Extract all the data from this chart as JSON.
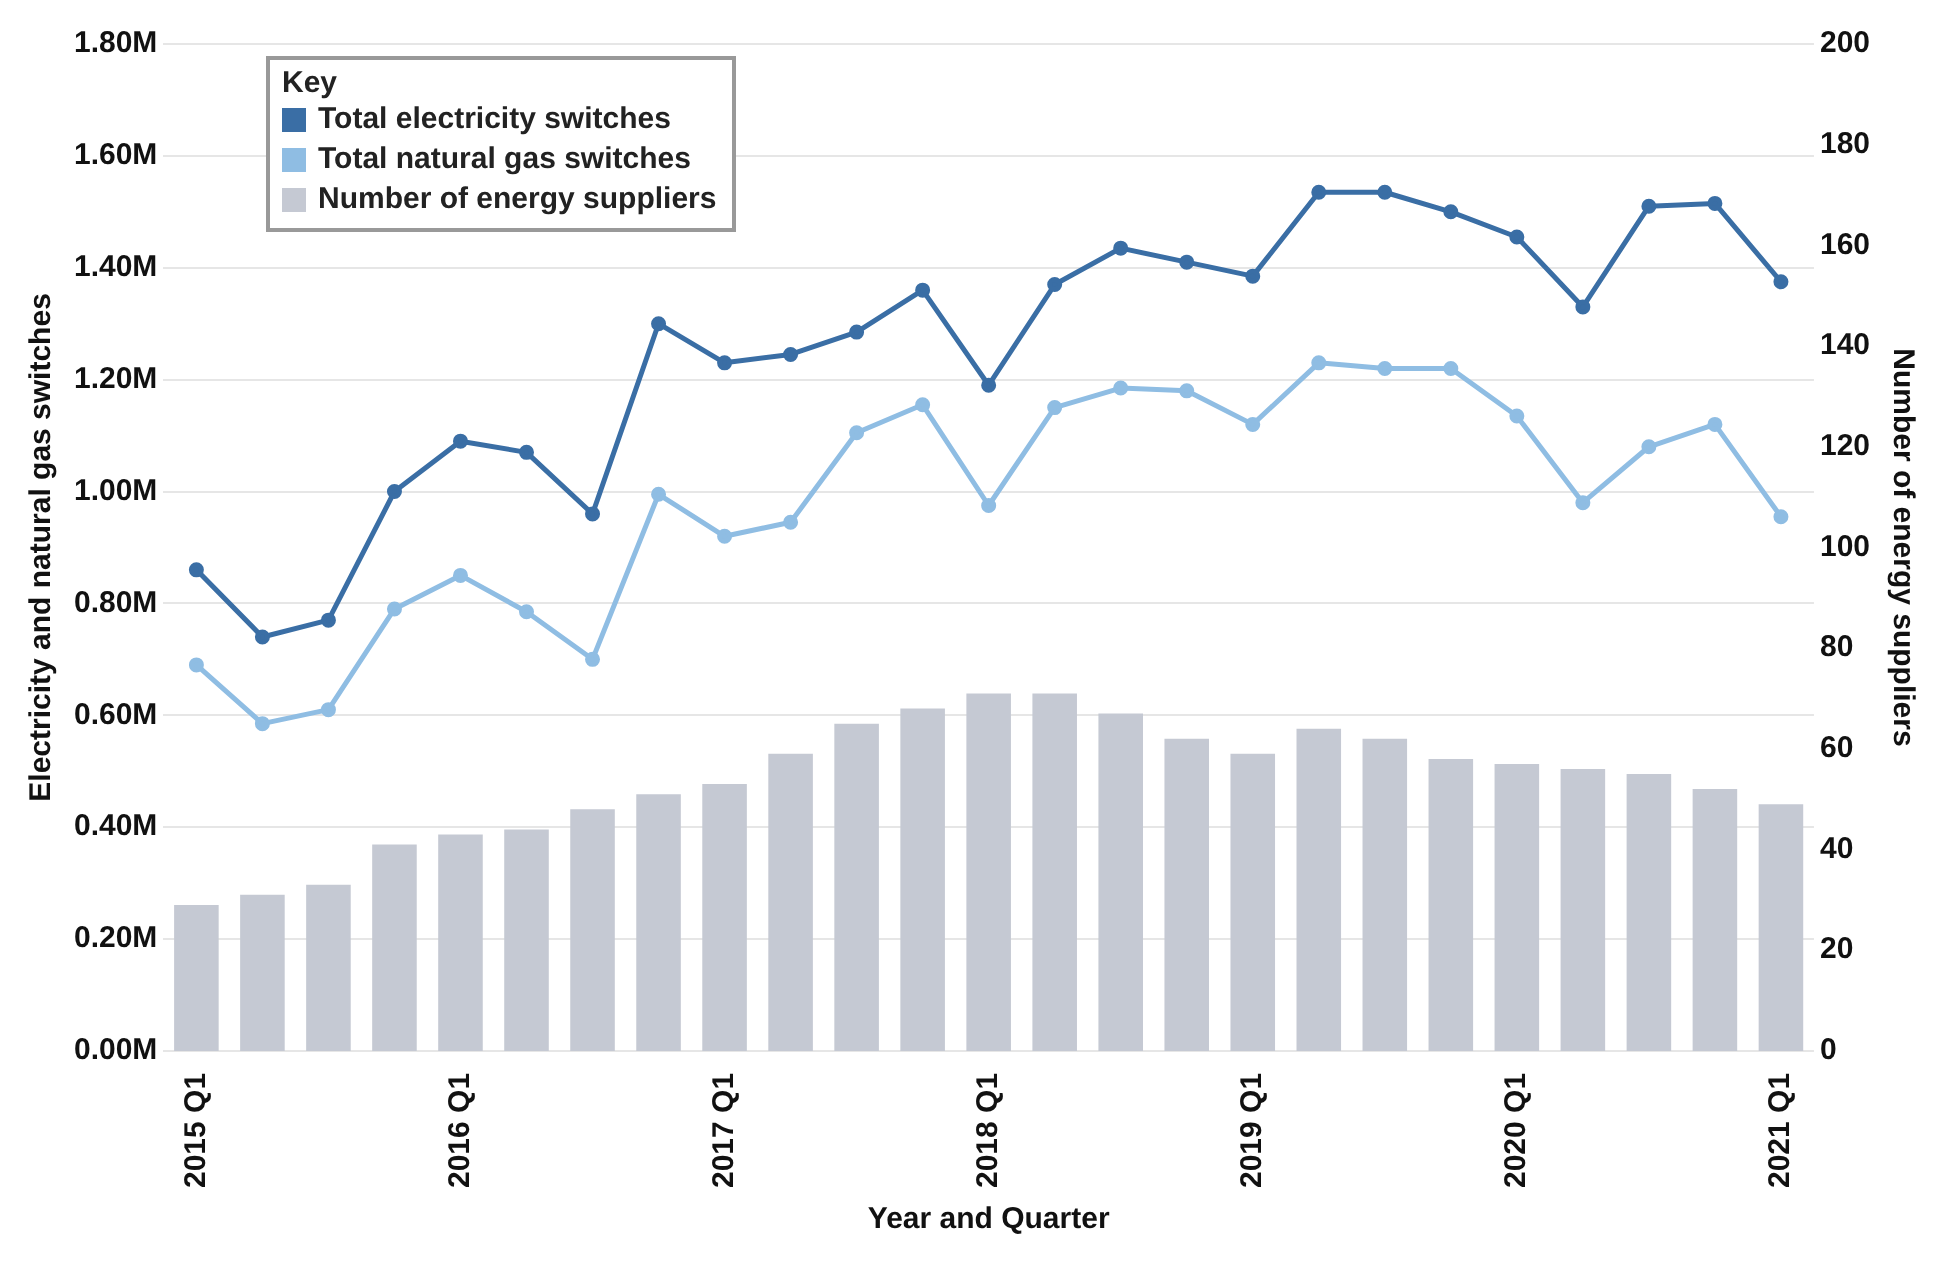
{
  "chart_data": {
    "type": "line",
    "xlabel": "Year and Quarter",
    "ylabel": "Electricity and natural gas switches",
    "y2label": "Number of energy suppliers",
    "legend_title": "Key",
    "categories": [
      "2015 Q1",
      null,
      null,
      null,
      "2016 Q1",
      null,
      null,
      null,
      "2017 Q1",
      null,
      null,
      null,
      "2018 Q1",
      null,
      null,
      null,
      "2019 Q1",
      null,
      null,
      null,
      "2020 Q1",
      null,
      null,
      null,
      "2021 Q1"
    ],
    "series": [
      {
        "name": "Total electricity switches",
        "color": "#3a6ea5",
        "values": [
          0.86,
          0.74,
          0.77,
          1.0,
          1.09,
          1.07,
          0.96,
          1.3,
          1.23,
          1.245,
          1.285,
          1.36,
          1.19,
          1.37,
          1.435,
          1.41,
          1.385,
          1.535,
          1.535,
          1.5,
          1.455,
          1.33,
          1.51,
          1.515,
          1.375
        ]
      },
      {
        "name": "Total natural gas switches",
        "color": "#8fbde3",
        "values": [
          0.69,
          0.585,
          0.61,
          0.79,
          0.85,
          0.785,
          0.7,
          0.995,
          0.92,
          0.945,
          1.105,
          1.155,
          0.975,
          1.15,
          1.185,
          1.18,
          1.12,
          1.23,
          1.22,
          1.22,
          1.135,
          0.98,
          1.08,
          1.12,
          0.955
        ]
      },
      {
        "name": "Number of energy suppliers",
        "type": "bar",
        "axis": "y2",
        "color": "#c5c9d3",
        "values": [
          29,
          31,
          33,
          41,
          43,
          44,
          48,
          51,
          53,
          59,
          65,
          68,
          71,
          71,
          67,
          62,
          59,
          64,
          62,
          58,
          57,
          56,
          55,
          52,
          49
        ]
      }
    ],
    "ylim": [
      0,
      1.8
    ],
    "yticks": [
      {
        "value": 0,
        "label": "0.00M"
      },
      {
        "value": 0.2,
        "label": "0.20M"
      },
      {
        "value": 0.4,
        "label": "0.40M"
      },
      {
        "value": 0.6,
        "label": "0.60M"
      },
      {
        "value": 0.8,
        "label": "0.80M"
      },
      {
        "value": 1.0,
        "label": "1.00M"
      },
      {
        "value": 1.2,
        "label": "1.20M"
      },
      {
        "value": 1.4,
        "label": "1.40M"
      },
      {
        "value": 1.6,
        "label": "1.60M"
      },
      {
        "value": 1.8,
        "label": "1.80M"
      }
    ],
    "y2lim": [
      0,
      200
    ],
    "y2ticks": [
      0,
      20,
      40,
      60,
      80,
      100,
      120,
      140,
      160,
      180,
      200
    ],
    "grid": "y",
    "legend": "top left",
    "marker": "circle",
    "line_style": "solid"
  }
}
